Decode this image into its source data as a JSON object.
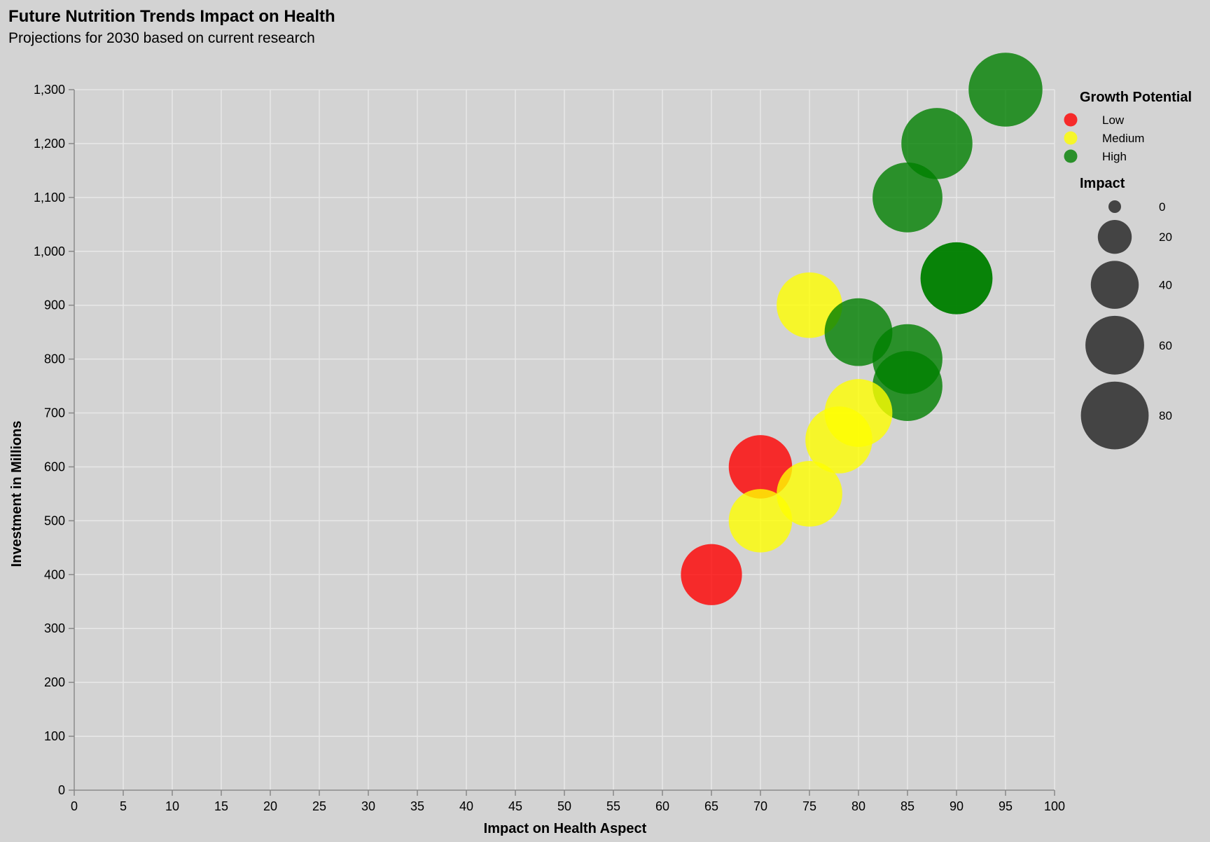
{
  "chart_data": {
    "type": "scatter",
    "title": "Future Nutrition Trends Impact on Health",
    "subtitle": "Projections for 2030 based on current research",
    "xlabel": "Impact on Health Aspect",
    "ylabel": "Investment in Millions",
    "xlim": [
      0,
      100
    ],
    "ylim": [
      0,
      1300
    ],
    "x_ticks": [
      0,
      5,
      10,
      15,
      20,
      25,
      30,
      35,
      40,
      45,
      50,
      55,
      60,
      65,
      70,
      75,
      80,
      85,
      90,
      95,
      100
    ],
    "y_ticks": [
      0,
      100,
      200,
      300,
      400,
      500,
      600,
      700,
      800,
      900,
      1000,
      1100,
      1200,
      1300
    ],
    "grid": true,
    "color_legend": {
      "title": "Growth Potential",
      "placement": "right",
      "entries": [
        {
          "label": "Low",
          "color": "#ff0000"
        },
        {
          "label": "Medium",
          "color": "#ffff00"
        },
        {
          "label": "High",
          "color": "#008000"
        }
      ]
    },
    "size_legend": {
      "title": "Impact",
      "values": [
        0,
        20,
        40,
        60,
        80
      ]
    },
    "points": [
      {
        "x": 95,
        "y": 1300,
        "impact": 95,
        "growth": "High"
      },
      {
        "x": 88,
        "y": 1200,
        "impact": 88,
        "growth": "High"
      },
      {
        "x": 85,
        "y": 1100,
        "impact": 85,
        "growth": "High"
      },
      {
        "x": 90,
        "y": 950,
        "impact": 90,
        "growth": "High"
      },
      {
        "x": 90,
        "y": 950,
        "impact": 90,
        "growth": "High"
      },
      {
        "x": 75,
        "y": 900,
        "impact": 75,
        "growth": "Medium"
      },
      {
        "x": 80,
        "y": 850,
        "impact": 80,
        "growth": "High"
      },
      {
        "x": 85,
        "y": 800,
        "impact": 85,
        "growth": "High"
      },
      {
        "x": 85,
        "y": 750,
        "impact": 85,
        "growth": "High"
      },
      {
        "x": 80,
        "y": 700,
        "impact": 80,
        "growth": "Medium"
      },
      {
        "x": 78,
        "y": 650,
        "impact": 78,
        "growth": "Medium"
      },
      {
        "x": 70,
        "y": 600,
        "impact": 70,
        "growth": "Low"
      },
      {
        "x": 75,
        "y": 550,
        "impact": 75,
        "growth": "Medium"
      },
      {
        "x": 70,
        "y": 500,
        "impact": 70,
        "growth": "Medium"
      },
      {
        "x": 65,
        "y": 400,
        "impact": 65,
        "growth": "Low"
      }
    ]
  }
}
